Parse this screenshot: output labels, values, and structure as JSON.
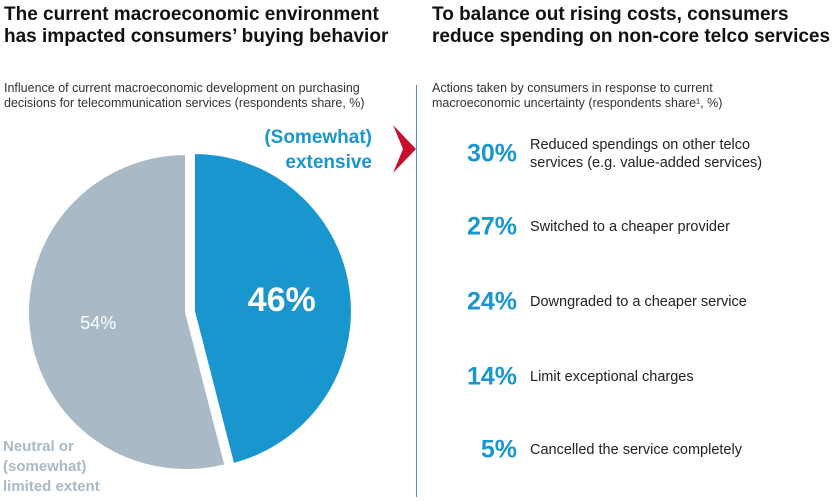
{
  "left": {
    "heading": "The current macroeconomic environment\nhas impacted consumers’ buying behavior",
    "subtitle": "Influence of current macroeconomic development on purchasing\ndecisions for telecommunication services (respondents share, %)"
  },
  "right": {
    "heading": "To balance out rising costs, consumers\nreduce spending on non-core telco services",
    "subtitle": "Actions taken by consumers in response to current\nmacroeconomic uncertainty (respondents share¹, %)"
  },
  "colors": {
    "blue": "#1a96cf",
    "grey": "#a9bac6",
    "arrow": "#c8102e",
    "divider": "#5b8db8"
  },
  "chart_data": [
    {
      "type": "pie",
      "title": "",
      "slices": [
        {
          "label": "(Somewhat)\nextensive",
          "value": 46,
          "value_label": "46%",
          "color": "#1a96cf",
          "exploded": true
        },
        {
          "label": "Neutral or\n(somewhat)\nlimited extent",
          "value": 54,
          "value_label": "54%",
          "color": "#a9bac6",
          "exploded": false
        }
      ]
    },
    {
      "type": "table",
      "title": "",
      "rows": [
        {
          "value": 30,
          "value_label": "30%",
          "label": "Reduced spendings on other telco\nservices (e.g. value-added services)"
        },
        {
          "value": 27,
          "value_label": "27%",
          "label": "Switched to a cheaper provider"
        },
        {
          "value": 24,
          "value_label": "24%",
          "label": "Downgraded to a cheaper service"
        },
        {
          "value": 14,
          "value_label": "14%",
          "label": "Limit exceptional charges"
        },
        {
          "value": 5,
          "value_label": "5%",
          "label": "Cancelled the service completely"
        }
      ]
    }
  ]
}
